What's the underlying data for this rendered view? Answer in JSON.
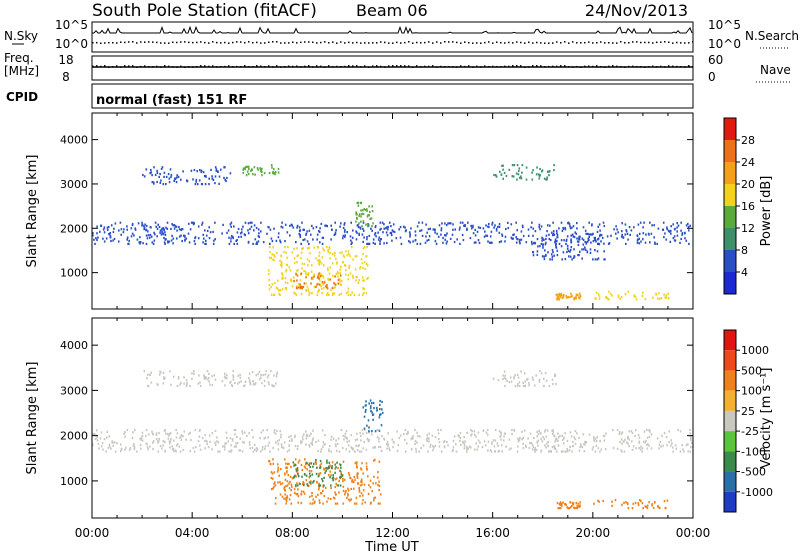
{
  "header": {
    "station": "South Pole Station (fitACF)",
    "beam": "Beam 06",
    "date": "24/Nov/2013"
  },
  "top_panel": {
    "left_label": "N.Sky",
    "right_label": "N.Search",
    "left_ticks": [
      "10^5",
      "10^0"
    ],
    "right_ticks": [
      "10^5",
      "10^0"
    ]
  },
  "freq_panel": {
    "left_label_1": "Freq.",
    "left_label_2": "[MHz]",
    "right_label": "Nave",
    "left_ticks": [
      "18",
      "8"
    ],
    "right_ticks": [
      "60",
      "0"
    ]
  },
  "cpid": {
    "label": "CPID",
    "value": "normal (fast) 151 RF"
  },
  "axes": {
    "ylabel": "Slant Range [km]",
    "xlabel": "Time UT",
    "x_ticks": [
      "00:00",
      "04:00",
      "08:00",
      "12:00",
      "16:00",
      "20:00",
      "00:00"
    ],
    "y_ticks": [
      "1000",
      "2000",
      "3000",
      "4000"
    ]
  },
  "colorbars": {
    "power": {
      "label": "Power [dB]",
      "ticks": [
        "4",
        "8",
        "12",
        "16",
        "20",
        "24",
        "28"
      ],
      "colors": [
        "#1c28d6",
        "#2a4ec8",
        "#3f8f6a",
        "#5aaa3c",
        "#f2d21c",
        "#f5a016",
        "#f07018",
        "#e01c10"
      ]
    },
    "velocity": {
      "label": "Velocity [m s⁻¹]",
      "ticks": [
        "1000",
        "500",
        "100",
        "25",
        "-25",
        "-100",
        "-500",
        "-1000"
      ],
      "colors": [
        "#1e3cc8",
        "#2a6fa8",
        "#3a8a4a",
        "#5cc43a",
        "#c8c8c0",
        "#f5b030",
        "#f08018",
        "#f04818",
        "#e01410"
      ]
    }
  },
  "chart_data": [
    {
      "type": "heatmap",
      "title": "",
      "xlabel": "Time UT",
      "ylabel": "Slant Range [km]",
      "xlim": [
        0,
        24
      ],
      "ylim": [
        180,
        4600
      ],
      "color_scale": "Power [dB]",
      "regions": [
        {
          "t": [
            0.0,
            24.0
          ],
          "range": [
            1650,
            2150
          ],
          "value": 4
        },
        {
          "t": [
            2.0,
            5.5
          ],
          "range": [
            3000,
            3400
          ],
          "value": 6
        },
        {
          "t": [
            6.0,
            7.5
          ],
          "range": [
            3200,
            3450
          ],
          "value": 12
        },
        {
          "t": [
            7.0,
            11.0
          ],
          "range": [
            500,
            1600
          ],
          "value": 18
        },
        {
          "t": [
            8.0,
            10.0
          ],
          "range": [
            650,
            1000
          ],
          "value": 26
        },
        {
          "t": [
            10.5,
            11.2
          ],
          "range": [
            2050,
            2600
          ],
          "value": 14
        },
        {
          "t": [
            16.0,
            18.5
          ],
          "range": [
            3100,
            3450
          ],
          "value": 10
        },
        {
          "t": [
            17.5,
            20.5
          ],
          "range": [
            1300,
            1900
          ],
          "value": 6
        },
        {
          "t": [
            18.5,
            19.5
          ],
          "range": [
            400,
            550
          ],
          "value": 20
        },
        {
          "t": [
            20.0,
            23.0
          ],
          "range": [
            400,
            600
          ],
          "value": 18
        }
      ]
    },
    {
      "type": "heatmap",
      "title": "",
      "xlabel": "Time UT",
      "ylabel": "Slant Range [km]",
      "xlim": [
        0,
        24
      ],
      "ylim": [
        180,
        4600
      ],
      "color_scale": "Velocity [m s⁻¹]",
      "regions": [
        {
          "t": [
            0.0,
            24.0
          ],
          "range": [
            1650,
            2150
          ],
          "value": 0
        },
        {
          "t": [
            2.0,
            7.5
          ],
          "range": [
            3100,
            3450
          ],
          "value": 0
        },
        {
          "t": [
            7.0,
            11.5
          ],
          "range": [
            500,
            1500
          ],
          "value": -300
        },
        {
          "t": [
            8.0,
            10.0
          ],
          "range": [
            900,
            1500
          ],
          "value": 150
        },
        {
          "t": [
            10.8,
            11.6
          ],
          "range": [
            2100,
            2800
          ],
          "value": 800
        },
        {
          "t": [
            16.0,
            18.5
          ],
          "range": [
            3100,
            3450
          ],
          "value": 0
        },
        {
          "t": [
            18.5,
            19.5
          ],
          "range": [
            400,
            550
          ],
          "value": -400
        },
        {
          "t": [
            20.0,
            23.0
          ],
          "range": [
            400,
            600
          ],
          "value": -400
        }
      ]
    }
  ]
}
